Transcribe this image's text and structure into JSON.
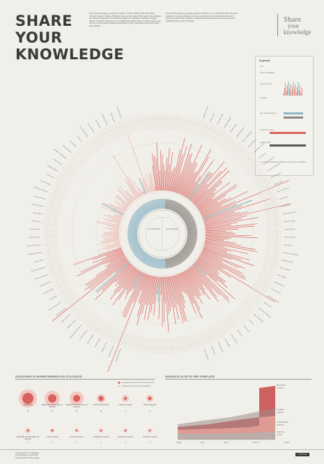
{
  "header": {
    "title_line1": "SHARE YOUR",
    "title_line2": "KNOWLEDGE",
    "intro_col1": "Share Your Knowledge è un progetto che stimola e sostiene la diffusione dei beni culturali attraverso Creative Commons e Wikipedia. Share your knowledge (SyK) fa parte di una mappatura dei contenuti resi disponibili dalle istituzioni culturali per condividere il patrimonio culturale digitale. L’infografica rappresenta le voci di Wikipedia in lingua italiana e le relative categorie; per ciascuna voce sono indicati il numero di modifiche e le visite, consentendo di osservare l’attività della comunità.",
    "intro_col2": "Share Your Knowledge è un progetto promosso da Iperbole, con la collaborazione del Centro Nexa su Internet e Società del Politecnico di Torino, per promuovere l’uso delle licenze libere nelle istituzioni culturali italiane, affinché i contenuti digitali diventino patrimonio comune attraverso Wikimedia Italia e Creative Commons.",
    "logo_line1": "Share",
    "logo_line2": "your",
    "logo_line3": "knowledge"
  },
  "legend": {
    "title": "legenda",
    "items": [
      "voce",
      "numero di modifiche",
      "numero di visite",
      "categoria",
      "anno di pubblicazione",
      "modifiche nel 2012",
      "visite nel 2012"
    ],
    "note": "Le voci sono ordinate per categoria e per numero di modifiche"
  },
  "radial": {
    "center_label_left": "Voci di Wikipedia",
    "center_label_right": "Voci di Wikipedia",
    "colors": {
      "red": "#d9625e",
      "light_red": "#eab3ad",
      "blue": "#8fb5c7",
      "teal": "#4a9fb0",
      "dark": "#555555",
      "ring": "#d8d4cc"
    },
    "left_names": [
      "Giuseppe Garibaldi",
      "Giacomo Puccini",
      "Giuseppe Verdi",
      "Galileo Galilei",
      "Dante Alighieri",
      "Leonardo da Vinci",
      "Michelangelo Buonarroti",
      "Raffaello Sanzio",
      "Giotto di Bondone",
      "Sandro Botticelli",
      "Gian Lorenzo Bernini",
      "Caravaggio",
      "Tiziano Vecellio",
      "Antonio Canova",
      "Giacomo Leopardi",
      "Alessandro Manzoni",
      "Ugo Foscolo",
      "Francesco Petrarca",
      "Giovanni Boccaccio",
      "Ludovico Ariosto",
      "Torquato Tasso",
      "Carlo Goldoni",
      "Vittorio Alfieri",
      "Giosuè Carducci",
      "Giovanni Pascoli",
      "Gabriele D'Annunzio",
      "Luigi Pirandello",
      "Italo Svevo",
      "Eugenio Montale",
      "Umberto Saba",
      "Salvatore Quasimodo",
      "Cesare Pavese",
      "Italo Calvino",
      "Primo Levi",
      "Pier Paolo Pasolini",
      "Alberto Moravia",
      "Elsa Morante",
      "Natalia Ginzburg",
      "Dino Buzzati",
      "Leonardo Sciascia"
    ],
    "right_names": [
      "Guglielmo Marconi",
      "Enrico Fermi",
      "Alessandro Volta",
      "Amedeo Avogadro",
      "Camillo Golgi",
      "Maria Montessori",
      "Rita Levi-Montalcini",
      "Antonio Meucci",
      "Evangelista Torricelli",
      "Luigi Galvani",
      "Lazzaro Spallanzani",
      "Giovanni Schiaparelli",
      "Ettore Majorana",
      "Emilio Segrè",
      "Bruno Pontecorvo",
      "Giulio Natta",
      "Carlo Rubbia",
      "Riccardo Giacconi",
      "Federico Faggin",
      "Camillo Olivetti",
      "Adriano Olivetti",
      "Enzo Ferrari",
      "Ferruccio Lamborghini",
      "Giovanni Agnelli",
      "Vittorio Valletta",
      "Enrico Mattei",
      "Giorgio Armani",
      "Gianni Versace",
      "Valentino Garavani",
      "Guccio Gucci",
      "Salvatore Ferragamo",
      "Elsa Schiaparelli",
      "Gio Ponti",
      "Renzo Piano",
      "Aldo Rossi",
      "Pier Luigi Nervi",
      "Carlo Scarpa",
      "Ettore Sottsass",
      "Bruno Munari",
      "Achille Castiglioni"
    ]
  },
  "categories": {
    "heading": "CATEGORIE DI APPARTENENZA PIÙ UTILIZZATE",
    "legend_a": "categorie presenti nelle voci create in 2012",
    "legend_b": "categorie presenti nelle voci modificate",
    "row1": [
      {
        "label": "BIOGRAFIE",
        "value": "48",
        "big": 13,
        "small": 8
      },
      {
        "label": "PERSONE VISSUTE NEL XX SECOLO",
        "value": "31",
        "big": 11,
        "small": 6
      },
      {
        "label": "PERSONE VISSUTE NEL XIX SECOLO",
        "value": "28",
        "big": 10,
        "small": 5
      },
      {
        "label": "SCRITTORI ITALIANI",
        "value": "12",
        "big": 6,
        "small": 3.5
      },
      {
        "label": "POLITICI ITALIANI",
        "value": "9",
        "big": 5,
        "small": 2
      },
      {
        "label": "ARTISTI ITALIANI",
        "value": "8",
        "big": 5,
        "small": 2.5
      }
    ],
    "row2": [
      {
        "label": "PERSONE VISSUTE NEL XVIII SECOLO",
        "value": "6",
        "big": 3.5,
        "small": 1.5
      },
      {
        "label": "POETI ITALIANI",
        "value": "5",
        "big": 3,
        "small": 1.5
      },
      {
        "label": "PITTORI ITALIANI",
        "value": "5",
        "big": 3,
        "small": 1.2
      },
      {
        "label": "SCIENZIATI ITALIANI",
        "value": "4",
        "big": 3,
        "small": 1.2
      },
      {
        "label": "MUSICISTI ITALIANI",
        "value": "4",
        "big": 3,
        "small": 1.2
      },
      {
        "label": "FILOSOFI ITALIANI",
        "value": "3",
        "big": 3,
        "small": 1.2
      }
    ]
  },
  "growth": {
    "heading": "AGGIUNTA DI BYTE PER TEMPLATE",
    "months": [
      "Maggio",
      "Luglio",
      "Agosto",
      "Settembre",
      "Ottobre"
    ],
    "series_labels": [
      "BIOGRAFIE",
      "INFOBOX",
      "LINK ESTERNI",
      "PORTALE"
    ],
    "series_values": [
      "3,214 KB",
      "1,965 KB",
      "1,003 KB",
      "824 KB"
    ],
    "colors": [
      "#c9514f",
      "#9d8e8a",
      "#e9a49c",
      "#b5b1ac"
    ]
  },
  "footer": {
    "lines": [
      "Dati tratti dalle voci di Wikipedia",
      "in lingua italiana, periodo 2012",
      "Progetto grafico: Density Design"
    ],
    "license": "CC BY-SA"
  }
}
